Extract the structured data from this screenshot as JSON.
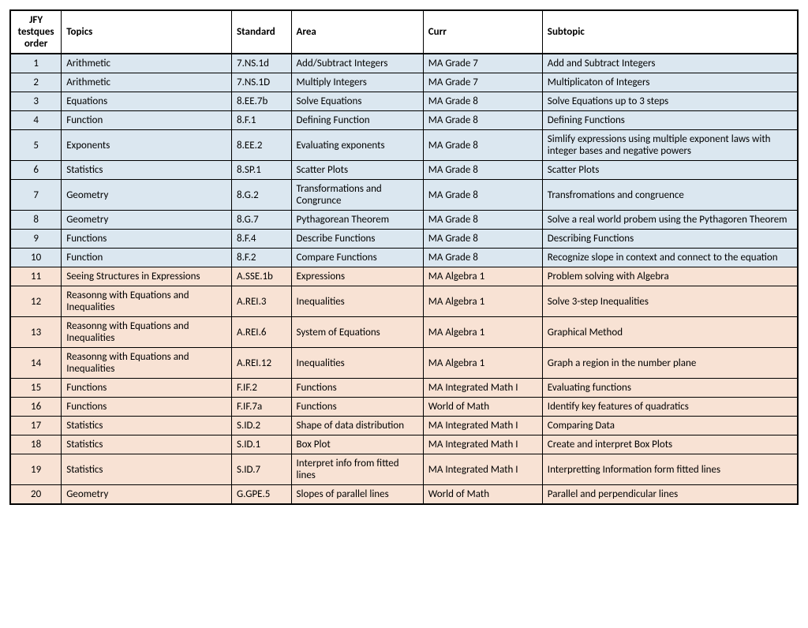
{
  "table": {
    "row_colors": {
      "blue": "#dbe7f0",
      "orange": "#f8e2d4"
    },
    "columns": [
      {
        "key": "order",
        "label": "JFY testques order"
      },
      {
        "key": "topics",
        "label": "Topics"
      },
      {
        "key": "standard",
        "label": "Standard"
      },
      {
        "key": "area",
        "label": "Area"
      },
      {
        "key": "curr",
        "label": "Curr"
      },
      {
        "key": "subtopic",
        "label": "Subtopic"
      }
    ],
    "rows": [
      {
        "group": "blue",
        "order": "1",
        "topics": "Arithmetic",
        "standard": "7.NS.1d",
        "area": "Add/Subtract Integers",
        "curr": "MA Grade 7",
        "subtopic": "Add and Subtract Integers"
      },
      {
        "group": "blue",
        "order": "2",
        "topics": "Arithmetic",
        "standard": "7.NS.1D",
        "area": "Multiply Integers",
        "curr": "MA Grade 7",
        "subtopic": "Multiplicaton of Integers"
      },
      {
        "group": "blue",
        "order": "3",
        "topics": "Equations",
        "standard": "8.EE.7b",
        "area": "Solve Equations",
        "curr": "MA Grade 8",
        "subtopic": "Solve Equations up to 3 steps"
      },
      {
        "group": "blue",
        "order": "4",
        "topics": "Function",
        "standard": "8.F.1",
        "area": "Defining Function",
        "curr": "MA Grade 8",
        "subtopic": "Defining Functions"
      },
      {
        "group": "blue",
        "order": "5",
        "topics": "Exponents",
        "standard": "8.EE.2",
        "area": "Evaluating exponents",
        "curr": "MA Grade 8",
        "subtopic": "Simlify expressions using multiple exponent laws with integer bases and negative powers"
      },
      {
        "group": "blue",
        "order": "6",
        "topics": "Statistics",
        "standard": "8.SP.1",
        "area": "Scatter Plots",
        "curr": "MA Grade 8",
        "subtopic": "Scatter Plots"
      },
      {
        "group": "blue",
        "order": "7",
        "topics": "Geometry",
        "standard": "8.G.2",
        "area": "Transformations and Congrunce",
        "curr": "MA Grade 8",
        "subtopic": "Transfromations and congruence"
      },
      {
        "group": "blue",
        "order": "8",
        "topics": "Geometry",
        "standard": "8.G.7",
        "area": "Pythagorean Theorem",
        "curr": "MA Grade 8",
        "subtopic": "Solve a real world probem using the Pythagoren Theorem"
      },
      {
        "group": "blue",
        "order": "9",
        "topics": " Functions",
        "standard": "8.F.4",
        "area": "Describe Functions",
        "curr": "MA Grade 8",
        "subtopic": "Describing Functions"
      },
      {
        "group": "blue",
        "order": "10",
        "topics": "Function",
        "standard": "8.F.2",
        "area": "Compare Functions",
        "curr": "MA Grade 8",
        "subtopic": "Recognize slope in context and connect to the equation"
      },
      {
        "group": "orange",
        "order": "11",
        "topics": "Seeing Structures in Expressions",
        "standard": "A.SSE.1b",
        "area": "Expressions",
        "curr": "MA Algebra 1",
        "subtopic": "Problem solving with Algebra"
      },
      {
        "group": "orange",
        "order": "12",
        "topics": "Reasonng with Equations and Inequalities",
        "standard": "A.REI.3",
        "area": "Inequalities",
        "curr": "MA Algebra 1",
        "subtopic": "Solve 3-step Inequalities"
      },
      {
        "group": "orange",
        "order": "13",
        "topics": "Reasonng with Equations and Inequalities",
        "standard": "A.REI.6",
        "area": "System of Equations",
        "curr": "MA Algebra 1",
        "subtopic": "Graphical Method"
      },
      {
        "group": "orange",
        "order": "14",
        "topics": "Reasonng with Equations and Inequalities",
        "standard": "A.REI.12",
        "area": "Inequalities",
        "curr": "MA Algebra 1",
        "subtopic": "Graph a region in the number plane"
      },
      {
        "group": "orange",
        "order": "15",
        "topics": "Functions",
        "standard": "F.IF.2",
        "area": "Functions",
        "curr": "MA Integrated Math I",
        "subtopic": "Evaluating functions"
      },
      {
        "group": "orange",
        "order": "16",
        "topics": "Functions",
        "standard": "F.IF.7a",
        "area": "Functions",
        "curr": "World of Math",
        "subtopic": "Identify key features of quadratics"
      },
      {
        "group": "orange",
        "order": "17",
        "topics": "Statistics",
        "standard": "S.ID.2",
        "area": "Shape of data distribution",
        "curr": "MA Integrated Math I",
        "subtopic": "Comparing Data"
      },
      {
        "group": "orange",
        "order": "18",
        "topics": "Statistics",
        "standard": "S.ID.1",
        "area": "Box Plot",
        "curr": "MA Integrated Math I",
        "subtopic": "Create and interpret Box Plots"
      },
      {
        "group": "orange",
        "order": "19",
        "topics": "Statistics",
        "standard": "S.ID.7",
        "area": "Interpret info from fitted lines",
        "curr": "MA Integrated Math I",
        "subtopic": "Interpretting Information form fitted lines"
      },
      {
        "group": "orange",
        "order": "20",
        "topics": "Geometry",
        "standard": "G.GPE.5",
        "area": "Slopes of parallel lines",
        "curr": "World of Math",
        "subtopic": "Parallel and perpendicular lines"
      }
    ]
  }
}
